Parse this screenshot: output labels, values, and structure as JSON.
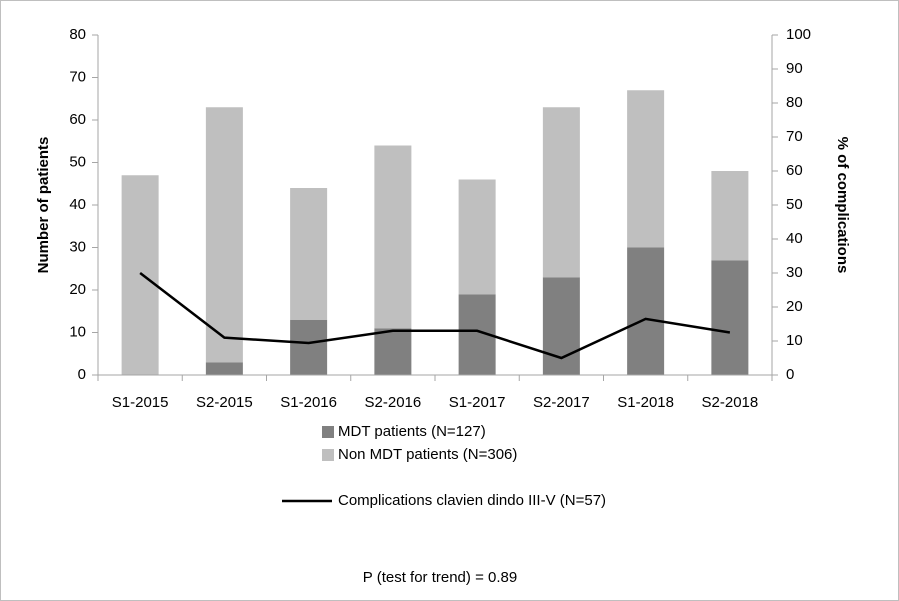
{
  "chart_data": {
    "type": "bar",
    "stacked": true,
    "grid": false,
    "categories": [
      "S1-2015",
      "S2-2015",
      "S1-2016",
      "S2-2016",
      "S1-2017",
      "S2-2017",
      "S1-2018",
      "S2-2018"
    ],
    "series": [
      {
        "name": "MDT patients (N=127)",
        "color": "#808080",
        "values": [
          0,
          3,
          13,
          11,
          19,
          23,
          30,
          27
        ]
      },
      {
        "name": "Non MDT patients (N=306)",
        "color": "#bfbfbf",
        "values": [
          47,
          60,
          31,
          43,
          27,
          40,
          37,
          21
        ]
      },
      {
        "name": "Complications clavien dindo III-V (N=57)",
        "color": "#000000",
        "type": "line",
        "axis": "y2",
        "values": [
          30,
          11,
          9.4,
          13,
          13,
          5,
          16.5,
          12.5
        ]
      }
    ],
    "ylabel": "Number of patients",
    "y2label": "% of complications",
    "ylim": [
      0,
      80
    ],
    "yticks": [
      0,
      10,
      20,
      30,
      40,
      50,
      60,
      70,
      80
    ],
    "y2lim": [
      0,
      100
    ],
    "y2ticks": [
      0,
      10,
      20,
      30,
      40,
      50,
      60,
      70,
      80,
      90,
      100
    ],
    "annotation": "P (test for trend) = 0.89"
  }
}
